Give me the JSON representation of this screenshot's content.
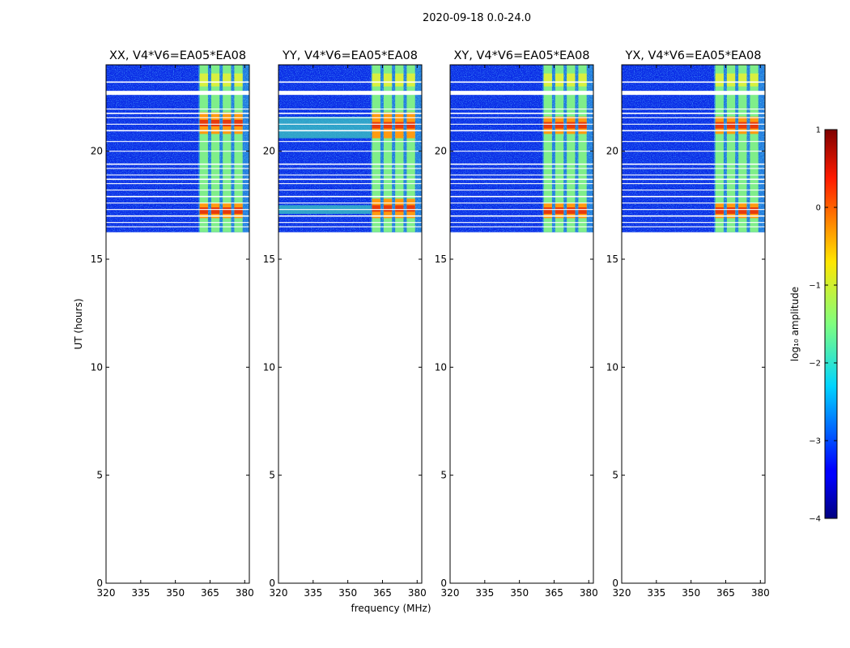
{
  "figure_title": "2020-09-18 0.0-24.0",
  "chart_data": {
    "type": "heatmap",
    "suptitle": "2020-09-18 0.0-24.0",
    "xlabel": "frequency (MHz)",
    "ylabel": "UT (hours)",
    "xlim": [
      320,
      382
    ],
    "ylim": [
      0,
      24
    ],
    "x_ticks": [
      320,
      335,
      350,
      365,
      380
    ],
    "y_ticks": [
      0,
      5,
      10,
      15,
      20
    ],
    "data_time_range": [
      16.25,
      24
    ],
    "rfi_band_MHz": [
      360,
      382
    ],
    "rfi_columns_MHz": [
      360.5,
      365.5,
      370.5,
      375.5
    ],
    "flagged_rows_UT": [
      23.2,
      22.7,
      21.95,
      21.75,
      21.55,
      21.25,
      20.95,
      20.45,
      20.0,
      19.4,
      19.2,
      18.9,
      18.7,
      18.5,
      18.2,
      17.9,
      17.6,
      17.3,
      17.0,
      16.7,
      16.5
    ],
    "panels": [
      {
        "title": "XX, V4*V6=EA05*EA08",
        "hot_bands": [
          [
            16.9,
            17.6
          ],
          [
            20.8,
            21.8
          ]
        ],
        "low_freq_feature": null
      },
      {
        "title": "YY, V4*V6=EA05*EA08",
        "hot_bands": [
          [
            16.9,
            17.8
          ],
          [
            20.6,
            21.8
          ]
        ],
        "low_freq_feature": [
          [
            17.1,
            17.5
          ],
          [
            20.6,
            21.6
          ]
        ]
      },
      {
        "title": "XY, V4*V6=EA05*EA08",
        "hot_bands": [
          [
            16.9,
            17.6
          ],
          [
            20.8,
            21.6
          ]
        ],
        "low_freq_feature": null
      },
      {
        "title": "YX, V4*V6=EA05*EA08",
        "hot_bands": [
          [
            16.9,
            17.6
          ],
          [
            20.8,
            21.6
          ]
        ],
        "low_freq_feature": null
      }
    ],
    "colorbar": {
      "label": "log₁₀ amplitude",
      "range": [
        -4,
        1
      ],
      "ticks": [
        "1",
        "0",
        "−1",
        "−2",
        "−3",
        "−4"
      ],
      "colormap": "jet"
    }
  }
}
